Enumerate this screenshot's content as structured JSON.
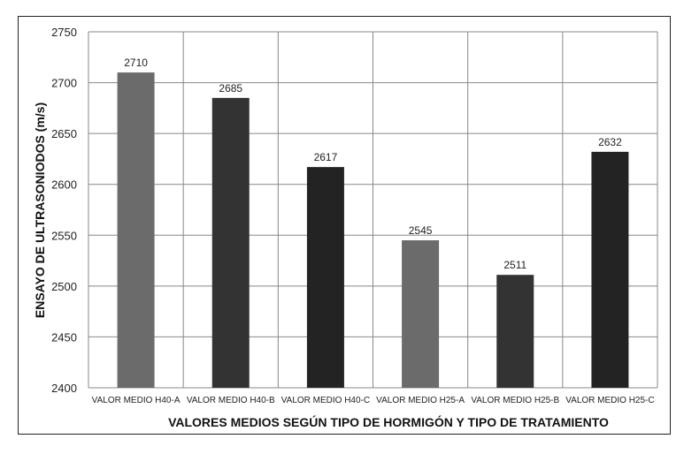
{
  "chart_data": {
    "type": "bar",
    "title": "",
    "xlabel": "VALORES MEDIOS SEGÚN TIPO DE HORMIGÓN Y TIPO DE TRATAMIENTO",
    "ylabel": "ENSAYO DE ULTRASONIODOS (m/s)",
    "ylim": [
      2400,
      2750
    ],
    "yticks": [
      2400,
      2450,
      2500,
      2550,
      2600,
      2650,
      2700,
      2750
    ],
    "grid": true,
    "categories": [
      "VALOR MEDIO H40-A",
      "VALOR MEDIO H40-B",
      "VALOR MEDIO H40-C",
      "VALOR MEDIO H25-A",
      "VALOR MEDIO H25-B",
      "VALOR MEDIO H25-C"
    ],
    "values": [
      2710,
      2685,
      2617,
      2545,
      2511,
      2632
    ],
    "data_labels": [
      "2710",
      "2685",
      "2617",
      "2545",
      "2511",
      "2632"
    ],
    "colors": [
      "#6b6b6b",
      "#333333",
      "#232323",
      "#6b6b6b",
      "#333333",
      "#232323"
    ]
  }
}
